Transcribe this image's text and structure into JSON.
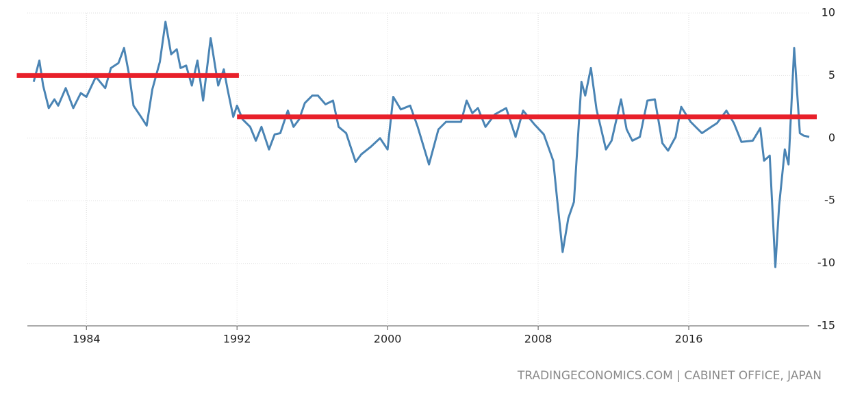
{
  "chart_data": {
    "type": "line",
    "source": "TRADINGECONOMICS.COM | CABINET OFFICE, JAPAN",
    "x": [
      1981.2,
      1981.5,
      1981.7,
      1982.0,
      1982.3,
      1982.5,
      1982.9,
      1983.3,
      1983.7,
      1984.0,
      1984.5,
      1985.0,
      1985.3,
      1985.7,
      1986.0,
      1986.3,
      1986.5,
      1986.9,
      1987.2,
      1987.5,
      1987.9,
      1988.2,
      1988.5,
      1988.8,
      1989.0,
      1989.3,
      1989.6,
      1989.9,
      1990.2,
      1990.6,
      1991.0,
      1991.3,
      1991.5,
      1991.8,
      1992.0,
      1992.3,
      1992.7,
      1993.0,
      1993.3,
      1993.7,
      1994.0,
      1994.3,
      1994.7,
      1995.0,
      1995.3,
      1995.6,
      1996.0,
      1996.3,
      1996.7,
      1997.1,
      1997.4,
      1997.8,
      1998.3,
      1998.6,
      1999.1,
      1999.6,
      2000.0,
      2000.3,
      2000.7,
      2001.2,
      2001.6,
      2002.2,
      2002.7,
      2003.1,
      2003.6,
      2003.9,
      2004.2,
      2004.5,
      2004.8,
      2005.2,
      2005.7,
      2006.3,
      2006.8,
      2007.2,
      2007.8,
      2008.3,
      2008.8,
      2009.0,
      2009.3,
      2009.6,
      2009.9,
      2010.3,
      2010.5,
      2010.8,
      2011.1,
      2011.6,
      2011.9,
      2012.4,
      2012.7,
      2013.0,
      2013.4,
      2013.8,
      2014.2,
      2014.6,
      2014.9,
      2015.3,
      2015.6,
      2016.1,
      2016.7,
      2017.2,
      2017.5,
      2018.0,
      2018.4,
      2018.8,
      2019.4,
      2019.8,
      2020.0,
      2020.3,
      2020.6,
      2020.8,
      2021.1,
      2021.3,
      2021.6,
      2021.9,
      2022.1,
      2022.4
    ],
    "series": [
      {
        "color": "#4a84b4",
        "values": [
          4.5,
          6.2,
          4.2,
          2.4,
          3.1,
          2.6,
          4.0,
          2.4,
          3.6,
          3.3,
          4.9,
          4.0,
          5.6,
          6.0,
          7.2,
          4.8,
          2.6,
          1.7,
          1.0,
          3.9,
          6.1,
          9.3,
          6.7,
          7.1,
          5.6,
          5.8,
          4.2,
          6.2,
          3.0,
          8.0,
          4.2,
          5.5,
          3.9,
          1.7,
          2.6,
          1.5,
          0.9,
          -0.2,
          0.9,
          -0.9,
          0.3,
          0.4,
          2.2,
          0.9,
          1.5,
          2.8,
          3.4,
          3.4,
          2.7,
          3.0,
          0.9,
          0.4,
          -1.9,
          -1.3,
          -0.7,
          0,
          -0.9,
          3.3,
          2.3,
          2.6,
          0.9,
          -2.1,
          0.7,
          1.3,
          1.3,
          1.3,
          3.0,
          2.0,
          2.4,
          0.9,
          1.9,
          2.4,
          0.1,
          2.2,
          1.1,
          0.3,
          -1.8,
          -4.8,
          -9.1,
          -6.4,
          -5.1,
          4.5,
          3.4,
          5.6,
          2.3,
          -0.9,
          -0.2,
          3.1,
          0.7,
          -0.2,
          0.1,
          3.0,
          3.1,
          -0.4,
          -1.0,
          0.1,
          2.5,
          1.3,
          0.4,
          0.9,
          1.2,
          2.2,
          1.2,
          -0.3,
          -0.2,
          0.8,
          -1.8,
          -1.4,
          -10.3,
          -5.4,
          -0.9,
          -2.1,
          7.2,
          0.4,
          0.2,
          0.1
        ]
      }
    ],
    "reference_lines": [
      {
        "x": [
          1980.3,
          1992.1
        ],
        "value": 5,
        "color": "#e8202a"
      },
      {
        "x": [
          1992.0,
          2022.8
        ],
        "value": 1.7,
        "color": "#e8202a"
      }
    ],
    "xlim": [
      1980.5,
      2022.4
    ],
    "xticks": [
      1984,
      1992,
      2000,
      2008,
      2016
    ],
    "ylim": [
      -15,
      10
    ],
    "yticks": [
      10,
      5,
      0,
      -5,
      -10,
      -15
    ],
    "grid": true
  }
}
